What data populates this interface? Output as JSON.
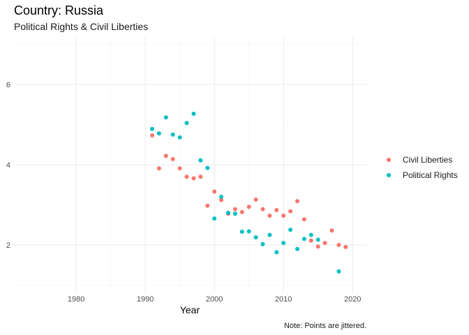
{
  "chart_data": {
    "type": "scatter",
    "title": "Country: Russia",
    "subtitle": "Political Rights & Civil Liberties",
    "xlabel": "Year",
    "ylabel": "",
    "caption": "Note: Points are jittered.",
    "xlim": [
      1971,
      2022
    ],
    "ylim": [
      0.8,
      7.2
    ],
    "x_ticks": [
      1980,
      1990,
      2000,
      2010,
      2020
    ],
    "y_ticks": [
      2,
      4,
      6
    ],
    "grid": true,
    "legend_position": "right",
    "series": [
      {
        "name": "Civil Liberties",
        "color": "#F8766D",
        "points": [
          [
            1991,
            4.73
          ],
          [
            1992,
            3.91
          ],
          [
            1993,
            4.22
          ],
          [
            1994,
            4.14
          ],
          [
            1995,
            3.91
          ],
          [
            1996,
            3.7
          ],
          [
            1997,
            3.66
          ],
          [
            1998,
            3.7
          ],
          [
            1999,
            2.98
          ],
          [
            2000,
            3.33
          ],
          [
            2001,
            3.12
          ],
          [
            2002,
            2.78
          ],
          [
            2003,
            2.89
          ],
          [
            2004,
            2.82
          ],
          [
            2005,
            2.95
          ],
          [
            2006,
            3.13
          ],
          [
            2007,
            2.89
          ],
          [
            2008,
            2.73
          ],
          [
            2009,
            2.87
          ],
          [
            2010,
            2.73
          ],
          [
            2011,
            2.84
          ],
          [
            2012,
            3.09
          ],
          [
            2013,
            2.64
          ],
          [
            2014,
            2.11
          ],
          [
            2015,
            1.96
          ],
          [
            2016,
            2.05
          ],
          [
            2017,
            2.36
          ],
          [
            2018,
            2.0
          ],
          [
            2019,
            1.95
          ]
        ]
      },
      {
        "name": "Political Rights",
        "color": "#00BFC4",
        "points": [
          [
            1991,
            4.89
          ],
          [
            1992,
            4.78
          ],
          [
            1993,
            5.18
          ],
          [
            1994,
            4.75
          ],
          [
            1995,
            4.68
          ],
          [
            1996,
            5.04
          ],
          [
            1997,
            5.27
          ],
          [
            1998,
            4.11
          ],
          [
            1999,
            3.92
          ],
          [
            2000,
            2.66
          ],
          [
            2001,
            3.2
          ],
          [
            2002,
            2.8
          ],
          [
            2003,
            2.78
          ],
          [
            2004,
            2.33
          ],
          [
            2005,
            2.34
          ],
          [
            2006,
            2.19
          ],
          [
            2007,
            2.02
          ],
          [
            2008,
            2.25
          ],
          [
            2009,
            1.82
          ],
          [
            2010,
            2.05
          ],
          [
            2011,
            2.38
          ],
          [
            2012,
            1.9
          ],
          [
            2013,
            2.15
          ],
          [
            2014,
            2.25
          ],
          [
            2015,
            2.13
          ],
          [
            2018,
            1.34
          ]
        ]
      }
    ]
  }
}
